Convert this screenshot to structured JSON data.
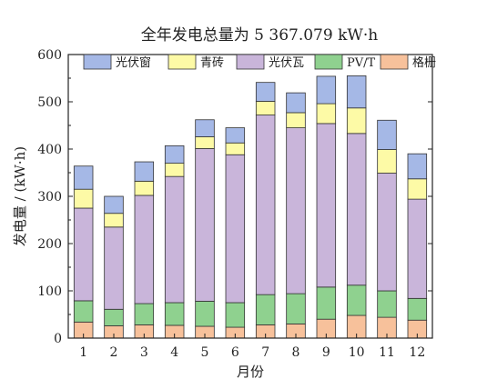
{
  "chart_data": {
    "type": "bar",
    "stacked": true,
    "title": "全年发电总量为 5 367.079 kW·h",
    "xlabel": "月份",
    "ylabel": "发电量 / (kW·h)",
    "ylim": [
      0,
      600
    ],
    "yticks": [
      0,
      100,
      200,
      300,
      400,
      500,
      600
    ],
    "grid": false,
    "legend_position": "top",
    "categories": [
      "1",
      "2",
      "3",
      "4",
      "5",
      "6",
      "7",
      "8",
      "9",
      "10",
      "11",
      "12"
    ],
    "series": [
      {
        "name": "格栅",
        "color": "#f7c19b",
        "values": [
          34,
          26,
          28,
          27,
          25,
          23,
          28,
          30,
          40,
          48,
          44,
          38
        ]
      },
      {
        "name": "PV/T",
        "color": "#8fd18f",
        "values": [
          45,
          35,
          45,
          48,
          53,
          52,
          64,
          64,
          68,
          64,
          56,
          46
        ]
      },
      {
        "name": "光伏瓦",
        "color": "#c9b5da",
        "values": [
          196,
          174,
          229,
          267,
          323,
          313,
          380,
          351,
          346,
          321,
          249,
          210
        ]
      },
      {
        "name": "青砖",
        "color": "#fdfaa6",
        "values": [
          40,
          29,
          30,
          28,
          25,
          25,
          29,
          32,
          42,
          54,
          50,
          43
        ]
      },
      {
        "name": "光伏窗",
        "color": "#a5b8e6",
        "values": [
          49,
          36,
          41,
          37,
          36,
          32,
          40,
          42,
          58,
          68,
          62,
          53
        ]
      }
    ]
  }
}
